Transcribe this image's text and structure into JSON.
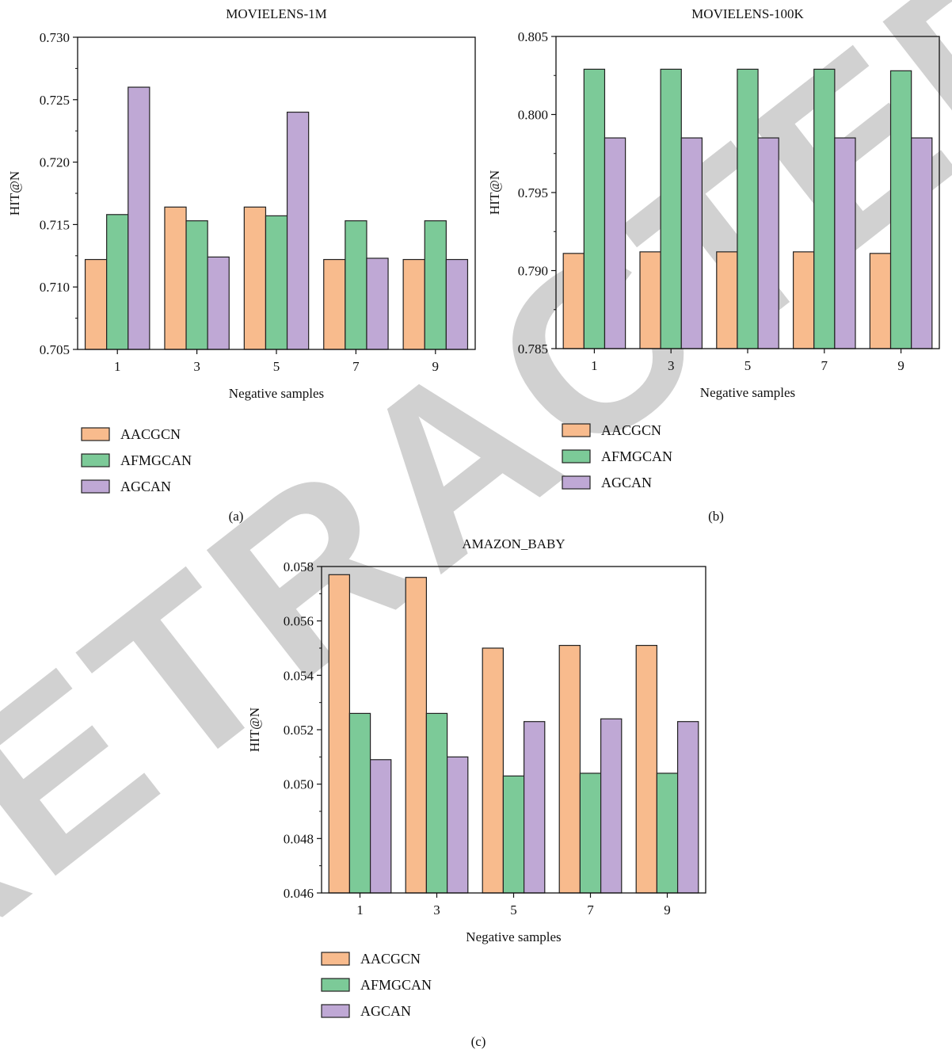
{
  "colors": {
    "AACGCN": "#F8BB8D",
    "AFMGCAN": "#7CCA98",
    "AGCAN": "#BFA8D5",
    "bar_stroke": "#222222",
    "axis": "#111111",
    "watermark": "#9a9a9a"
  },
  "watermark": {
    "text": "RETRACTED"
  },
  "chart_data": [
    {
      "type": "bar",
      "panel_label": "(a)",
      "title": "MOVIELENS-1M",
      "xlabel": "Negative samples",
      "ylabel": "HIT@N",
      "categories": [
        "1",
        "3",
        "5",
        "7",
        "9"
      ],
      "ylim": [
        0.705,
        0.73
      ],
      "yticks": [
        0.705,
        0.71,
        0.715,
        0.72,
        0.725,
        0.73
      ],
      "ytick_labels": [
        "0.705",
        "0.710",
        "0.715",
        "0.720",
        "0.725",
        "0.730"
      ],
      "series": [
        {
          "name": "AACGCN",
          "values": [
            0.7122,
            0.7164,
            0.7164,
            0.7122,
            0.7122
          ]
        },
        {
          "name": "AFMGCAN",
          "values": [
            0.7158,
            0.7153,
            0.7157,
            0.7153,
            0.7153
          ]
        },
        {
          "name": "AGCAN",
          "values": [
            0.726,
            0.7124,
            0.724,
            0.7123,
            0.7122
          ]
        }
      ],
      "legend_position": "below-left"
    },
    {
      "type": "bar",
      "panel_label": "(b)",
      "title": "MOVIELENS-100K",
      "xlabel": "Negative samples",
      "ylabel": "HIT@N",
      "categories": [
        "1",
        "3",
        "5",
        "7",
        "9"
      ],
      "ylim": [
        0.785,
        0.805
      ],
      "yticks": [
        0.785,
        0.79,
        0.795,
        0.8,
        0.805
      ],
      "ytick_labels": [
        "0.785",
        "0.790",
        "0.795",
        "0.800",
        "0.805"
      ],
      "series": [
        {
          "name": "AACGCN",
          "values": [
            0.7911,
            0.7912,
            0.7912,
            0.7912,
            0.7911
          ]
        },
        {
          "name": "AFMGCAN",
          "values": [
            0.8029,
            0.8029,
            0.8029,
            0.8029,
            0.8028
          ]
        },
        {
          "name": "AGCAN",
          "values": [
            0.7985,
            0.7985,
            0.7985,
            0.7985,
            0.7985
          ]
        }
      ],
      "legend_position": "below-left"
    },
    {
      "type": "bar",
      "panel_label": "(c)",
      "title": "AMAZON_BABY",
      "xlabel": "Negative samples",
      "ylabel": "HIT@N",
      "categories": [
        "1",
        "3",
        "5",
        "7",
        "9"
      ],
      "ylim": [
        0.046,
        0.058
      ],
      "yticks": [
        0.046,
        0.048,
        0.05,
        0.052,
        0.054,
        0.056,
        0.058
      ],
      "ytick_labels": [
        "0.046",
        "0.048",
        "0.050",
        "0.052",
        "0.054",
        "0.056",
        "0.058"
      ],
      "series": [
        {
          "name": "AACGCN",
          "values": [
            0.0577,
            0.0576,
            0.055,
            0.0551,
            0.0551
          ]
        },
        {
          "name": "AFMGCAN",
          "values": [
            0.0526,
            0.0526,
            0.0503,
            0.0504,
            0.0504
          ]
        },
        {
          "name": "AGCAN",
          "values": [
            0.0509,
            0.051,
            0.0523,
            0.0524,
            0.0523
          ]
        }
      ],
      "legend_position": "below-left"
    }
  ]
}
